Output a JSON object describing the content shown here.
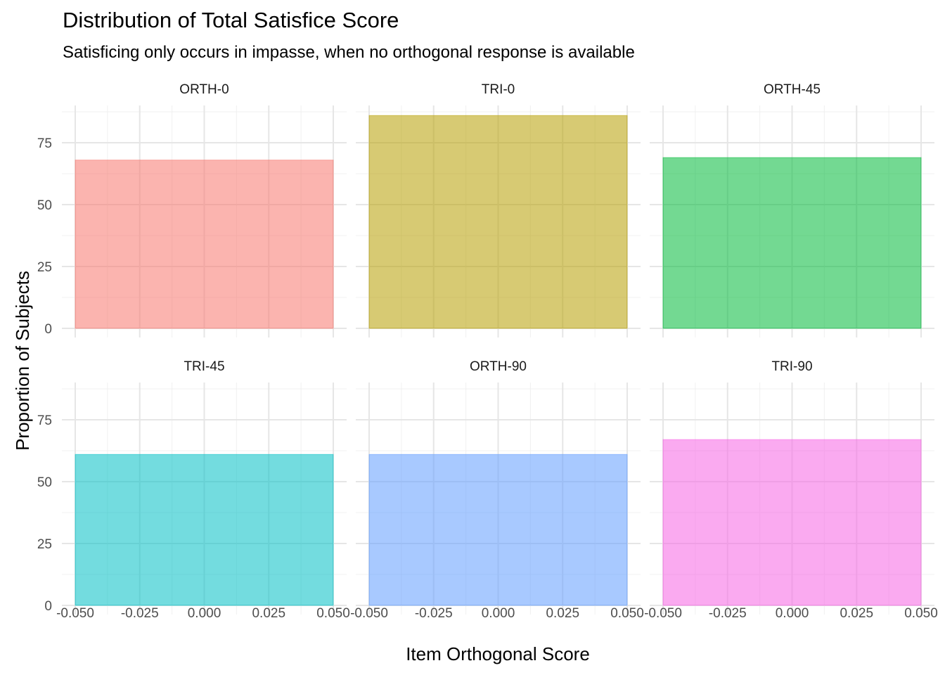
{
  "chart_data": {
    "type": "bar",
    "title": "Distribution of Total Satisfice Score",
    "subtitle": "Satisficing only occurs in impasse, when no orthogonal response is available",
    "xlabel": "Item Orthogonal Score",
    "ylabel": "Proportion of Subjects",
    "xlim": [
      -0.05,
      0.05
    ],
    "ylim": [
      0,
      90
    ],
    "x_ticks": [
      "-0.050",
      "-0.025",
      "0.000",
      "0.025",
      "0.050"
    ],
    "y_ticks": [
      "0",
      "25",
      "50",
      "75"
    ],
    "grid": true,
    "legend": "none",
    "facets": [
      {
        "name": "ORTH-0",
        "x": 0.0,
        "value": 68,
        "color": "#F8766D"
      },
      {
        "name": "TRI-0",
        "x": 0.0,
        "value": 86,
        "color": "#B79F00"
      },
      {
        "name": "ORTH-45",
        "x": 0.0,
        "value": 69,
        "color": "#00BA38"
      },
      {
        "name": "TRI-45",
        "x": 0.0,
        "value": 61,
        "color": "#00BFC4"
      },
      {
        "name": "ORTH-90",
        "x": 0.0,
        "value": 61,
        "color": "#619CFF"
      },
      {
        "name": "TRI-90",
        "x": 0.0,
        "value": 67,
        "color": "#F564E3"
      }
    ]
  }
}
